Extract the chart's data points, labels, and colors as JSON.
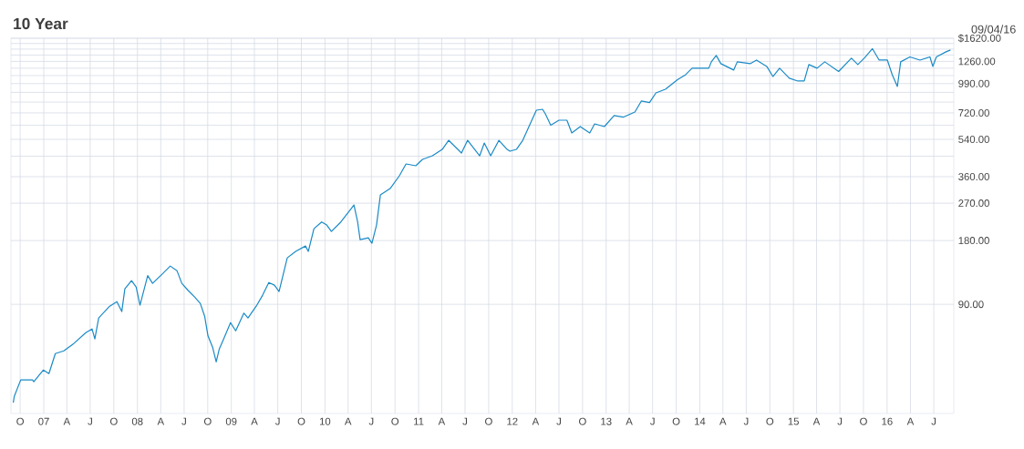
{
  "chart_data": {
    "type": "line",
    "title": "10 Year",
    "annotations": [
      "09/04/16"
    ],
    "color": "#1a8ac6",
    "grid": true,
    "log": "y",
    "xlim": [
      "2006-08-26",
      "2016-09-17"
    ],
    "ylim": [
      27.5,
      1620
    ],
    "xticks": [
      {
        "value": "2006-10-01",
        "label": "O"
      },
      {
        "value": "2007-01-01",
        "label": "07"
      },
      {
        "value": "2007-04-01",
        "label": "A"
      },
      {
        "value": "2007-07-01",
        "label": "J"
      },
      {
        "value": "2007-10-01",
        "label": "O"
      },
      {
        "value": "2008-01-01",
        "label": "08"
      },
      {
        "value": "2008-04-01",
        "label": "A"
      },
      {
        "value": "2008-07-01",
        "label": "J"
      },
      {
        "value": "2008-10-01",
        "label": "O"
      },
      {
        "value": "2009-01-01",
        "label": "09"
      },
      {
        "value": "2009-04-01",
        "label": "A"
      },
      {
        "value": "2009-07-01",
        "label": "J"
      },
      {
        "value": "2009-10-01",
        "label": "O"
      },
      {
        "value": "2010-01-01",
        "label": "10"
      },
      {
        "value": "2010-04-01",
        "label": "A"
      },
      {
        "value": "2010-07-01",
        "label": "J"
      },
      {
        "value": "2010-10-01",
        "label": "O"
      },
      {
        "value": "2011-01-01",
        "label": "11"
      },
      {
        "value": "2011-04-01",
        "label": "A"
      },
      {
        "value": "2011-07-01",
        "label": "J"
      },
      {
        "value": "2011-10-01",
        "label": "O"
      },
      {
        "value": "2012-01-01",
        "label": "12"
      },
      {
        "value": "2012-04-01",
        "label": "A"
      },
      {
        "value": "2012-07-01",
        "label": "J"
      },
      {
        "value": "2012-10-01",
        "label": "O"
      },
      {
        "value": "2013-01-01",
        "label": "13"
      },
      {
        "value": "2013-04-01",
        "label": "A"
      },
      {
        "value": "2013-07-01",
        "label": "J"
      },
      {
        "value": "2013-10-01",
        "label": "O"
      },
      {
        "value": "2014-01-01",
        "label": "14"
      },
      {
        "value": "2014-04-01",
        "label": "A"
      },
      {
        "value": "2014-07-01",
        "label": "J"
      },
      {
        "value": "2014-10-01",
        "label": "O"
      },
      {
        "value": "2015-01-01",
        "label": "15"
      },
      {
        "value": "2015-04-01",
        "label": "A"
      },
      {
        "value": "2015-07-01",
        "label": "J"
      },
      {
        "value": "2015-10-01",
        "label": "O"
      },
      {
        "value": "2016-01-01",
        "label": "16"
      },
      {
        "value": "2016-04-01",
        "label": "A"
      },
      {
        "value": "2016-07-01",
        "label": "J"
      }
    ],
    "yticks": [
      {
        "value": 90,
        "label": "90.00"
      },
      {
        "value": 180,
        "label": "180.00"
      },
      {
        "value": 270,
        "label": "270.00"
      },
      {
        "value": 360,
        "label": "360.00"
      },
      {
        "value": 450,
        "label": null
      },
      {
        "value": 540,
        "label": "540.00"
      },
      {
        "value": 630,
        "label": null
      },
      {
        "value": 720,
        "label": "720.00"
      },
      {
        "value": 810,
        "label": null
      },
      {
        "value": 900,
        "label": null
      },
      {
        "value": 990,
        "label": "990.00"
      },
      {
        "value": 1080,
        "label": null
      },
      {
        "value": 1170,
        "label": null
      },
      {
        "value": 1260,
        "label": "1260.00"
      },
      {
        "value": 1350,
        "label": null
      },
      {
        "value": 1440,
        "label": null
      },
      {
        "value": 1530,
        "label": null
      },
      {
        "value": 1620,
        "label": "$1620.00"
      }
    ],
    "x": [
      "2006-09-04",
      "2006-09-08",
      "2006-10-03",
      "2006-11-18",
      "2006-11-23",
      "2006-12-30",
      "2007-01-21",
      "2007-02-15",
      "2007-03-20",
      "2007-04-28",
      "2007-06-14",
      "2007-07-08",
      "2007-07-19",
      "2007-08-03",
      "2007-09-15",
      "2007-10-13",
      "2007-11-01",
      "2007-11-13",
      "2007-12-09",
      "2007-12-27",
      "2008-01-11",
      "2008-02-10",
      "2008-02-29",
      "2008-04-06",
      "2008-05-08",
      "2008-06-03",
      "2008-06-22",
      "2008-07-16",
      "2008-08-11",
      "2008-09-02",
      "2008-09-19",
      "2008-10-02",
      "2008-10-20",
      "2008-11-03",
      "2008-11-15",
      "2008-12-02",
      "2008-12-29",
      "2009-01-18",
      "2009-02-19",
      "2009-03-07",
      "2009-04-08",
      "2009-05-03",
      "2009-05-27",
      "2009-06-18",
      "2009-07-06",
      "2009-08-07",
      "2009-09-09",
      "2009-10-17",
      "2009-10-28",
      "2009-11-19",
      "2009-12-19",
      "2010-01-08",
      "2010-01-26",
      "2010-03-04",
      "2010-04-24",
      "2010-05-08",
      "2010-05-18",
      "2010-06-19",
      "2010-07-03",
      "2010-07-21",
      "2010-08-05",
      "2010-09-12",
      "2010-10-18",
      "2010-11-13",
      "2010-12-21",
      "2011-01-16",
      "2011-02-24",
      "2011-04-03",
      "2011-04-28",
      "2011-06-17",
      "2011-07-11",
      "2011-08-27",
      "2011-09-14",
      "2011-10-09",
      "2011-11-10",
      "2011-12-12",
      "2011-12-23",
      "2012-01-17",
      "2012-02-11",
      "2012-03-06",
      "2012-04-04",
      "2012-04-28",
      "2012-05-09",
      "2012-05-30",
      "2012-07-01",
      "2012-08-01",
      "2012-08-20",
      "2012-09-22",
      "2012-10-29",
      "2012-11-17",
      "2012-12-25",
      "2013-02-01",
      "2013-03-10",
      "2013-04-23",
      "2013-05-18",
      "2013-06-19",
      "2013-07-14",
      "2013-08-20",
      "2013-10-06",
      "2013-11-07",
      "2013-12-02",
      "2014-01-09",
      "2014-02-05",
      "2014-02-15",
      "2014-03-06",
      "2014-03-24",
      "2014-05-13",
      "2014-05-27",
      "2014-07-16",
      "2014-08-10",
      "2014-09-19",
      "2014-10-13",
      "2014-11-08",
      "2014-12-16",
      "2015-01-18",
      "2015-02-12",
      "2015-03-02",
      "2015-04-03",
      "2015-05-03",
      "2015-06-26",
      "2015-08-15",
      "2015-09-09",
      "2015-10-04",
      "2015-11-05",
      "2015-12-01",
      "2016-01-02",
      "2016-01-21",
      "2016-02-10",
      "2016-02-23",
      "2016-03-30",
      "2016-05-08",
      "2016-06-16",
      "2016-06-27",
      "2016-07-11",
      "2016-08-18",
      "2016-09-04"
    ],
    "values": [
      30.9,
      33.1,
      39.6,
      39.6,
      38.8,
      44.1,
      42.4,
      52.7,
      54.3,
      58.8,
      66.2,
      68.9,
      61.8,
      77.6,
      88.2,
      92.7,
      83.2,
      106.5,
      116.4,
      108.6,
      89.1,
      122.9,
      113,
      124.8,
      136.4,
      129.8,
      113,
      104.8,
      97.4,
      90.9,
      79.1,
      63.9,
      56.5,
      48.2,
      55.4,
      61.8,
      73.8,
      67.5,
      81.8,
      77.6,
      88.2,
      99.4,
      114.1,
      110.8,
      103.4,
      149.1,
      159.9,
      169.6,
      159.9,
      204.7,
      220.2,
      213,
      198.7,
      220.2,
      264.8,
      221.6,
      181.8,
      185.4,
      174.7,
      213,
      295.3,
      316.5,
      363.6,
      413.5,
      405.4,
      434.4,
      451.9,
      484.3,
      534.7,
      465.5,
      534.7,
      451.9,
      519,
      451.9,
      534.7,
      484.3,
      474.8,
      484.3,
      534.7,
      620.6,
      741.6,
      749,
      712.7,
      630,
      665,
      665,
      579,
      620.6,
      579,
      639,
      620.6,
      699,
      688,
      727,
      819,
      806,
      895,
      931,
      1033,
      1091,
      1170,
      1170,
      1170,
      1254,
      1344,
      1229,
      1147,
      1254,
      1229,
      1278,
      1193,
      1069,
      1170,
      1049,
      1018,
      1018,
      1217,
      1170,
      1254,
      1129,
      1304,
      1217,
      1304,
      1446,
      1278,
      1278,
      1091,
      959,
      1254,
      1323,
      1278,
      1323,
      1193,
      1323,
      1398,
      1426
    ]
  }
}
